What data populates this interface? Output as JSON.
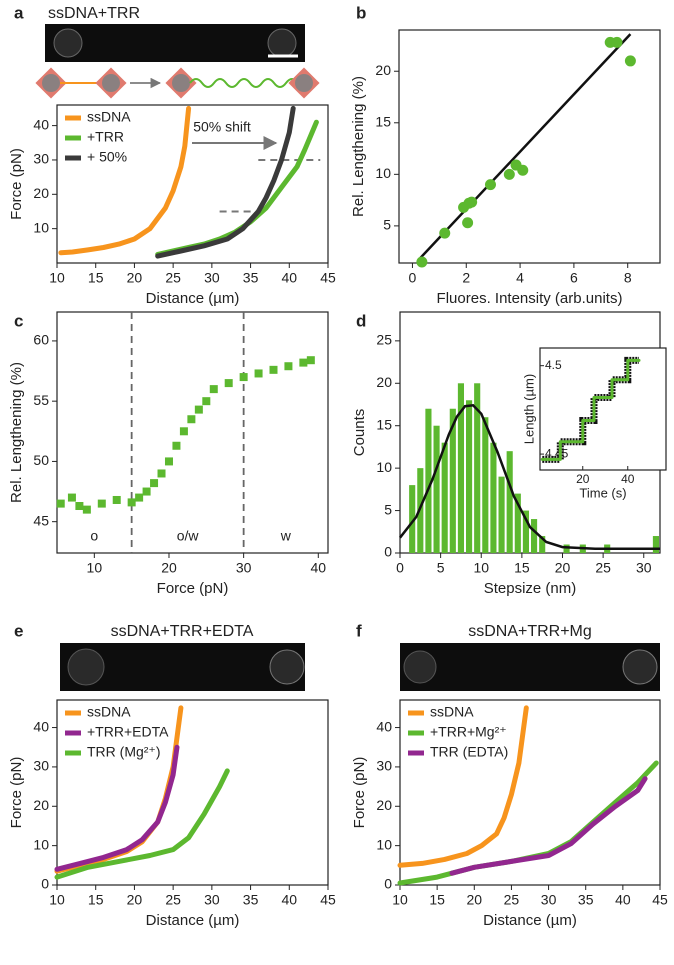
{
  "chart_data": [
    {
      "panel": "a",
      "type": "line",
      "title": "ssDNA+TRR",
      "annotation": "50% shift",
      "xlabel": "Distance (µm)",
      "ylabel": "Force (pN)",
      "xlim": [
        10,
        45
      ],
      "ylim": [
        0,
        46
      ],
      "xticks": [
        10,
        15,
        20,
        25,
        30,
        35,
        40,
        45
      ],
      "yticks": [
        10,
        20,
        30,
        40
      ],
      "series": [
        {
          "name": "ssDNA",
          "color": "#f7941d",
          "x": [
            10.5,
            12,
            14,
            16,
            18,
            20,
            22,
            24,
            25,
            26,
            26.5,
            27
          ],
          "values": [
            3,
            3.2,
            3.8,
            4.5,
            5.5,
            7,
            10,
            16,
            21,
            28,
            34,
            45
          ]
        },
        {
          "name": "+TRR",
          "color": "#5cb82f",
          "x": [
            23,
            25,
            27,
            29,
            31,
            33,
            35,
            37,
            39,
            41,
            42,
            43.5
          ],
          "values": [
            2.5,
            3.5,
            4.5,
            5.5,
            7,
            9,
            12,
            16,
            22,
            28,
            33,
            41
          ]
        },
        {
          "name": "+ 50%",
          "color": "#3a3a3a",
          "x": [
            23,
            26,
            29,
            32,
            34,
            36,
            37,
            38,
            39,
            40,
            40.5
          ],
          "values": [
            2,
            3.5,
            5,
            7,
            10,
            15,
            19,
            24,
            30,
            38,
            45
          ]
        }
      ],
      "hlines": [
        {
          "y": 30,
          "x": [
            36,
            44
          ]
        },
        {
          "y": 15,
          "x": [
            31,
            37
          ]
        }
      ]
    },
    {
      "panel": "b",
      "type": "scatter",
      "xlabel": "Fluores. Intensity (arb.units)",
      "ylabel": "Rel. Lengthening (%)",
      "xlim": [
        -0.5,
        9.2
      ],
      "ylim": [
        1.4,
        24
      ],
      "xticks": [
        0,
        2,
        4,
        6,
        8
      ],
      "yticks": [
        5,
        10,
        15,
        20
      ],
      "color": "#5cb82f",
      "marker": "circle",
      "x": [
        0.35,
        1.2,
        1.9,
        2.05,
        2.1,
        2.2,
        2.9,
        3.6,
        3.85,
        4.1,
        7.35,
        7.6,
        8.1
      ],
      "values": [
        1.5,
        4.3,
        6.8,
        5.3,
        7.2,
        7.3,
        9,
        10,
        10.9,
        10.4,
        22.8,
        22.8,
        21
      ],
      "fit": {
        "color": "#111111",
        "x": [
          0.3,
          8.1
        ],
        "values": [
          1.9,
          23.6
        ]
      }
    },
    {
      "panel": "c",
      "type": "scatter",
      "xlabel": "Force (pN)",
      "ylabel": "Rel. Lengthening (%)",
      "xlim": [
        5,
        41.3
      ],
      "ylim": [
        42.4,
        62.4
      ],
      "xticks": [
        10,
        20,
        30,
        40
      ],
      "yticks": [
        45,
        50,
        55,
        60
      ],
      "color": "#5cb82f",
      "marker": "square",
      "x": [
        5.5,
        7,
        8,
        9,
        11,
        13,
        15,
        16,
        17,
        18,
        19,
        20,
        21,
        22,
        23,
        24,
        25,
        26,
        28,
        30,
        32,
        34,
        36,
        38,
        39
      ],
      "values": [
        46.5,
        47,
        46.3,
        46,
        46.5,
        46.8,
        46.6,
        47,
        47.5,
        48.2,
        49,
        50,
        51.3,
        52.5,
        53.5,
        54.3,
        55,
        56,
        56.5,
        57,
        57.3,
        57.6,
        57.9,
        58.2,
        58.4
      ],
      "vlines": [
        15,
        30
      ],
      "regions": [
        "o",
        "o/w",
        "w"
      ]
    },
    {
      "panel": "d",
      "type": "histogram",
      "xlabel": "Stepsize (nm)",
      "ylabel": "Counts",
      "xlim": [
        0,
        32
      ],
      "ylim": [
        0,
        28.4
      ],
      "xticks": [
        0,
        5,
        10,
        15,
        20,
        25,
        30
      ],
      "yticks": [
        0,
        5,
        10,
        15,
        20,
        25
      ],
      "color": "#5cb82f",
      "bins": [
        1,
        2,
        3,
        4,
        5,
        6,
        7,
        8,
        9,
        10,
        11,
        12,
        13,
        14,
        15,
        16,
        17,
        18,
        19,
        20,
        21,
        22,
        23,
        24,
        25,
        26,
        27,
        28,
        29,
        30,
        31,
        32
      ],
      "counts": [
        8,
        10,
        17,
        15,
        13,
        17,
        20,
        18,
        20,
        16,
        13,
        9,
        12,
        7,
        5,
        4,
        2,
        0,
        0,
        1,
        0,
        1,
        0,
        0,
        1,
        0,
        0,
        0,
        0,
        0,
        2
      ],
      "fit": {
        "color": "#111111",
        "x": [
          0,
          2,
          4,
          6,
          7,
          8,
          9,
          10,
          12,
          14,
          16,
          18,
          20,
          24,
          28,
          32
        ],
        "values": [
          1.8,
          4.25,
          8.68,
          13.95,
          16.06,
          17.3,
          17.4,
          16.4,
          11.9,
          6.7,
          3.05,
          1.3,
          0.69,
          0.5,
          0.5,
          0.5
        ]
      },
      "inset": {
        "type": "line",
        "xlabel": "Time (s)",
        "ylabel": "Length (µm)",
        "xlim": [
          1,
          57
        ],
        "ylim": [
          4.441,
          4.51
        ],
        "xticks": [
          20,
          40
        ],
        "yticks": [
          4.45,
          4.5
        ],
        "series": [
          {
            "color": "#5cb82f",
            "x": [
              2,
              10,
              10,
              20,
              20,
              25,
              25,
              33,
              33,
              40,
              40,
              45
            ],
            "values": [
              4.447,
              4.447,
              4.457,
              4.457,
              4.469,
              4.469,
              4.482,
              4.482,
              4.492,
              4.492,
              4.503,
              4.503
            ]
          }
        ]
      }
    },
    {
      "panel": "e",
      "type": "line",
      "title": "ssDNA+TRR+EDTA",
      "xlabel": "Distance (µm)",
      "ylabel": "Force (pN)",
      "xlim": [
        10,
        45
      ],
      "ylim": [
        0,
        47
      ],
      "xticks": [
        10,
        15,
        20,
        25,
        30,
        35,
        40,
        45
      ],
      "yticks": [
        0,
        10,
        20,
        30,
        40
      ],
      "series": [
        {
          "name": "ssDNA",
          "color": "#f7941d",
          "x": [
            10,
            13,
            16,
            19,
            21,
            23,
            24,
            25,
            26
          ],
          "values": [
            3.5,
            5,
            6.5,
            8.5,
            11,
            16,
            22,
            30,
            45
          ]
        },
        {
          "name": "+TRR+EDTA",
          "color": "#92278f",
          "x": [
            10,
            13,
            16,
            19,
            21,
            23,
            24,
            25,
            25.5
          ],
          "values": [
            4,
            5.5,
            7,
            9,
            11.5,
            16,
            21,
            28,
            35
          ]
        },
        {
          "name": "TRR (Mg²⁺)",
          "color": "#5cb82f",
          "x": [
            10,
            14,
            18,
            22,
            25,
            27,
            29,
            31,
            32
          ],
          "values": [
            2,
            4.5,
            6,
            7.5,
            9,
            12,
            18,
            25,
            29
          ]
        }
      ]
    },
    {
      "panel": "f",
      "type": "line",
      "title": "ssDNA+TRR+Mg",
      "xlabel": "Distance (µm)",
      "ylabel": "Force (pN)",
      "xlim": [
        10,
        45
      ],
      "ylim": [
        0,
        47
      ],
      "xticks": [
        10,
        15,
        20,
        25,
        30,
        35,
        40,
        45
      ],
      "yticks": [
        0,
        10,
        20,
        30,
        40
      ],
      "series": [
        {
          "name": "ssDNA",
          "color": "#f7941d",
          "x": [
            10,
            13,
            16,
            19,
            21,
            23,
            24,
            25,
            26,
            27
          ],
          "values": [
            5,
            5.5,
            6.5,
            8,
            10,
            13,
            17,
            23,
            31,
            45
          ]
        },
        {
          "name": "+TRR+Mg²⁺",
          "color": "#5cb82f",
          "x": [
            10,
            15,
            20,
            25,
            30,
            33,
            36,
            39,
            42,
            44.5
          ],
          "values": [
            0.5,
            2,
            4.5,
            6,
            8,
            11,
            16,
            21,
            26,
            31
          ]
        },
        {
          "name": "TRR (EDTA)",
          "color": "#92278f",
          "x": [
            17,
            20,
            25,
            30,
            33,
            36,
            39,
            42,
            43
          ],
          "values": [
            3,
            4.5,
            6,
            7.5,
            10.5,
            15.5,
            20,
            24,
            27
          ]
        }
      ]
    }
  ]
}
